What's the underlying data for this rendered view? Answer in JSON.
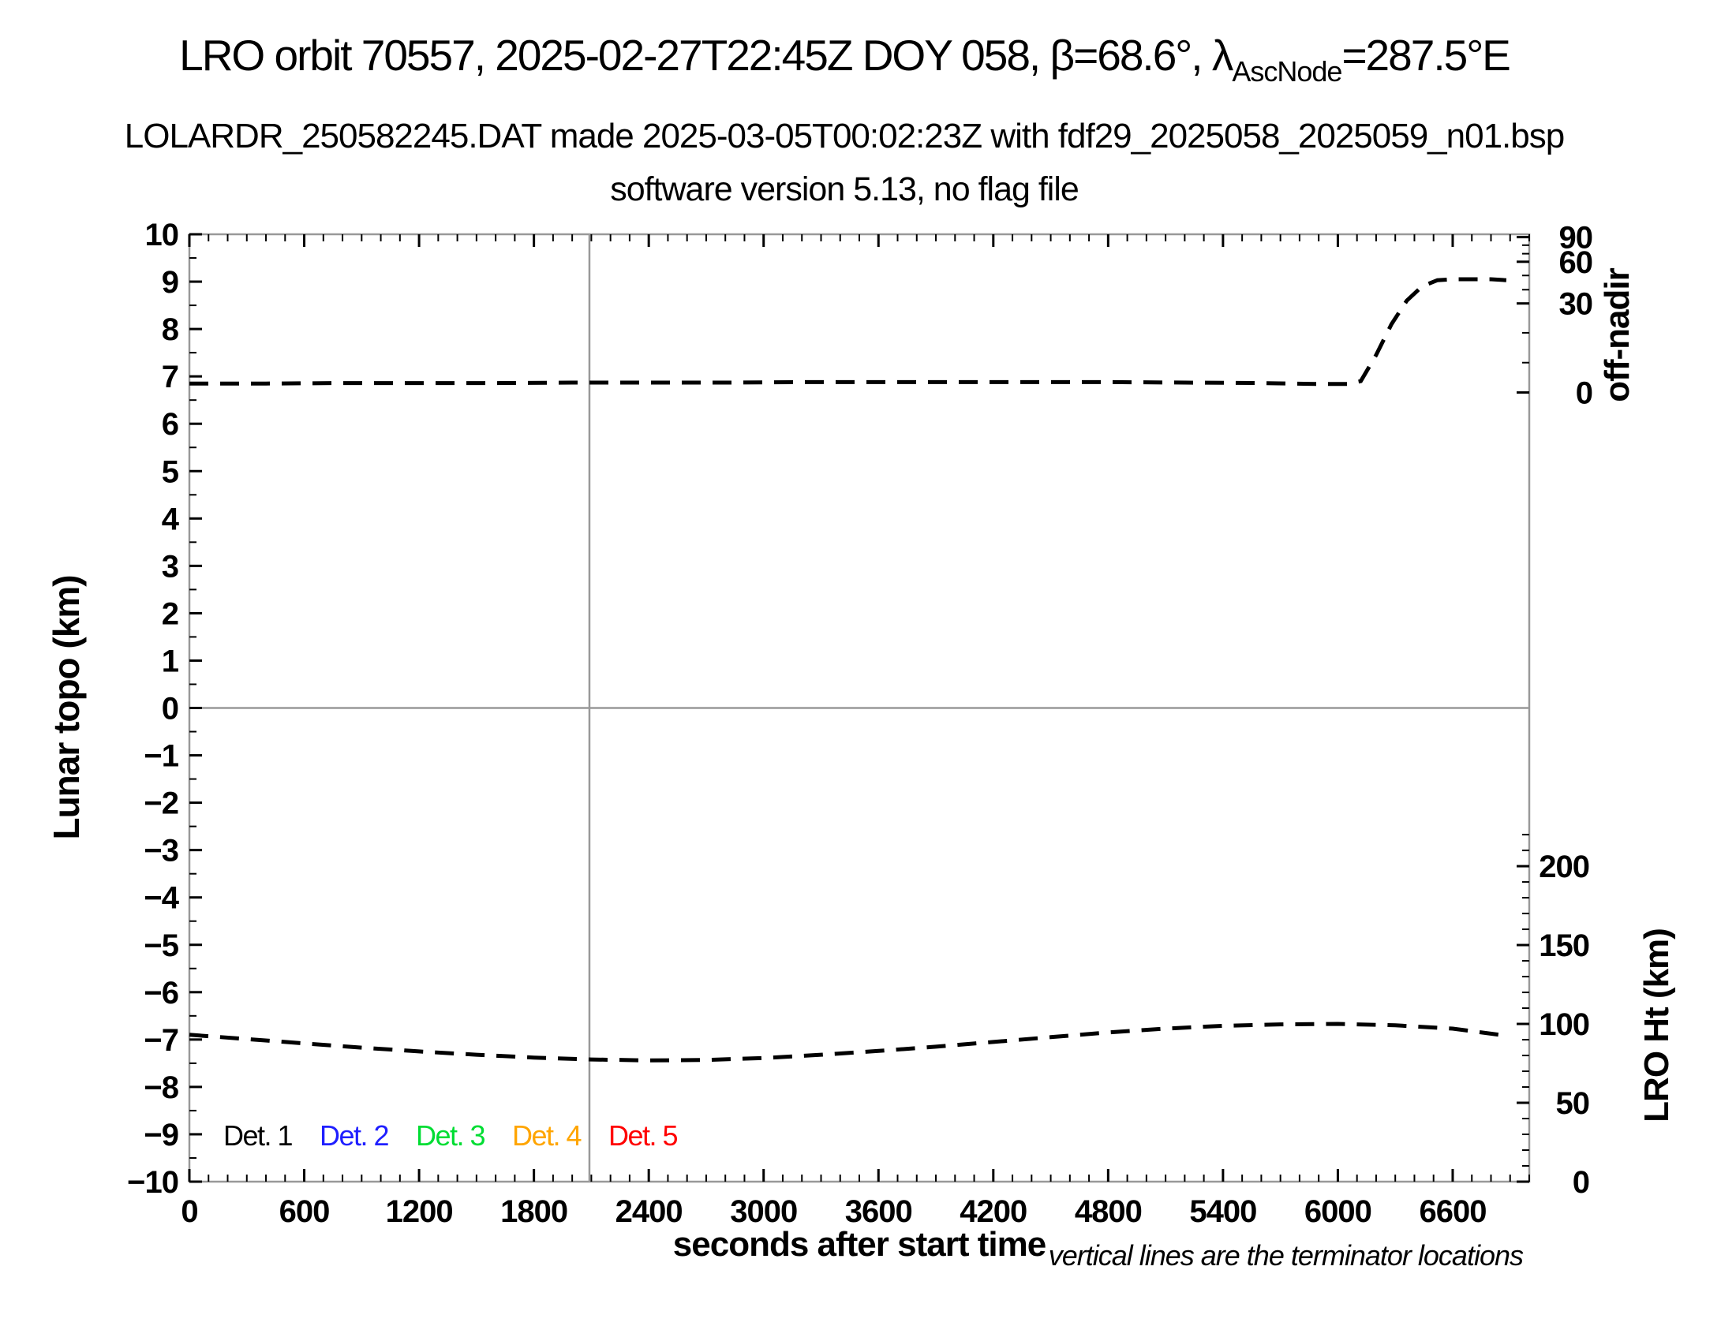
{
  "header": {
    "title": {
      "pre": "LRO orbit 70557, 2025-02-27T22:45Z DOY 058, β=68.6°, λ",
      "sub": "AscNode",
      "post": "=287.5°E"
    },
    "subtitle1": "LOLARDR_250582245.DAT made 2025-03-05T00:02:23Z with fdf29_2025058_2025059_n01.bsp",
    "subtitle2": "software version 5.13, no flag file"
  },
  "footnote": "vertical lines are the terminator locations",
  "chart_data": {
    "type": "line",
    "title": "LRO orbit 70557, 2025-02-27T22:45Z DOY 058, β=68.6°, λAscNode=287.5°E",
    "frame_color": "#999999",
    "guide_color": "#999999",
    "tick_color": "#000000",
    "dash_pattern": "24 15",
    "x_axis": {
      "label": "seconds after start time",
      "min": 0,
      "max": 7000,
      "major_tick_step": 600,
      "minor_tick_step": 100,
      "tick_labels": [
        "0",
        "600",
        "1200",
        "1800",
        "2400",
        "3000",
        "3600",
        "4200",
        "4800",
        "5400",
        "6000",
        "6600"
      ]
    },
    "y_left": {
      "label": "Lunar topo (km)",
      "min": -10,
      "max": 10,
      "major_tick_step": 1,
      "minor_tick_step": 0.5,
      "tick_labels": [
        "10",
        "9",
        "8",
        "7",
        "6",
        "5",
        "4",
        "3",
        "2",
        "1",
        "0",
        "−1",
        "−2",
        "−3",
        "−4",
        "−5",
        "−6",
        "−7",
        "−8",
        "−9",
        "−10"
      ]
    },
    "y_right_top": {
      "label": "off-nadir",
      "unit": "degrees",
      "major_ticks": [
        {
          "label": "90",
          "at_topo": 9.94
        },
        {
          "label": "60",
          "at_topo": 9.42
        },
        {
          "label": "30",
          "at_topo": 8.54
        },
        {
          "label": "0",
          "at_topo": 6.66
        }
      ],
      "minor_ticks_at_topo": [
        7.29,
        7.92,
        8.83,
        9.13,
        9.59,
        9.77
      ]
    },
    "y_right_bottom": {
      "label": "LRO Ht (km)",
      "major_ticks": [
        {
          "label": "200",
          "at_topo": -3.34
        },
        {
          "label": "150",
          "at_topo": -5.005
        },
        {
          "label": "100",
          "at_topo": -6.67
        },
        {
          "label": "50",
          "at_topo": -8.335
        },
        {
          "label": "0",
          "at_topo": -10
        }
      ],
      "minor_km_step": 10,
      "minor_km_max": 220,
      "km_to_topo_scale": 0.0333
    },
    "zero_line_topo": 0,
    "terminator_lines_s": [
      2090
    ],
    "series": [
      {
        "id": "off-nadir-curve",
        "name": "off-nadir angle",
        "color": "#000000",
        "line_style": "dashed",
        "axis": "y_right_top",
        "note": "≈3° off-nadir from 0 to ~6100 s, slews up to ≈45° by ~6500 s, flat to end",
        "points_t_topo": [
          [
            0,
            6.85
          ],
          [
            400,
            6.85
          ],
          [
            800,
            6.86
          ],
          [
            1200,
            6.86
          ],
          [
            1600,
            6.86
          ],
          [
            2000,
            6.87
          ],
          [
            2400,
            6.87
          ],
          [
            2800,
            6.87
          ],
          [
            3200,
            6.88
          ],
          [
            3600,
            6.88
          ],
          [
            4000,
            6.88
          ],
          [
            4400,
            6.88
          ],
          [
            4800,
            6.88
          ],
          [
            5200,
            6.87
          ],
          [
            5600,
            6.86
          ],
          [
            5900,
            6.84
          ],
          [
            6050,
            6.84
          ],
          [
            6120,
            6.9
          ],
          [
            6200,
            7.45
          ],
          [
            6280,
            8.1
          ],
          [
            6360,
            8.6
          ],
          [
            6440,
            8.9
          ],
          [
            6520,
            9.03
          ],
          [
            6600,
            9.05
          ],
          [
            6700,
            9.05
          ],
          [
            6800,
            9.05
          ],
          [
            6880,
            9.03
          ]
        ]
      },
      {
        "id": "lro-height-curve",
        "name": "LRO height",
        "color": "#000000",
        "line_style": "dashed",
        "axis": "y_right_bottom",
        "note": "≈92 km at start, minimum ≈76 km near 2400 s, maximum ≈99 km near 6000 s, ≈91 km at end",
        "points_t_topo": [
          [
            0,
            -6.9
          ],
          [
            300,
            -6.99
          ],
          [
            600,
            -7.08
          ],
          [
            900,
            -7.17
          ],
          [
            1200,
            -7.25
          ],
          [
            1500,
            -7.32
          ],
          [
            1800,
            -7.38
          ],
          [
            2100,
            -7.42
          ],
          [
            2400,
            -7.44
          ],
          [
            2700,
            -7.43
          ],
          [
            3000,
            -7.39
          ],
          [
            3300,
            -7.32
          ],
          [
            3600,
            -7.24
          ],
          [
            3900,
            -7.15
          ],
          [
            4200,
            -7.05
          ],
          [
            4500,
            -6.95
          ],
          [
            4800,
            -6.85
          ],
          [
            5100,
            -6.77
          ],
          [
            5400,
            -6.71
          ],
          [
            5700,
            -6.68
          ],
          [
            6000,
            -6.67
          ],
          [
            6300,
            -6.7
          ],
          [
            6600,
            -6.77
          ],
          [
            6880,
            -6.92
          ]
        ]
      }
    ],
    "legend": {
      "position": "bottom-left inside plot",
      "items": [
        {
          "label": "Det. 1",
          "color": "#000000"
        },
        {
          "label": "Det. 2",
          "color": "#1f1fff"
        },
        {
          "label": "Det. 3",
          "color": "#00dd33"
        },
        {
          "label": "Det. 4",
          "color": "#ffa500"
        },
        {
          "label": "Det. 5",
          "color": "#ff0000"
        }
      ]
    }
  }
}
